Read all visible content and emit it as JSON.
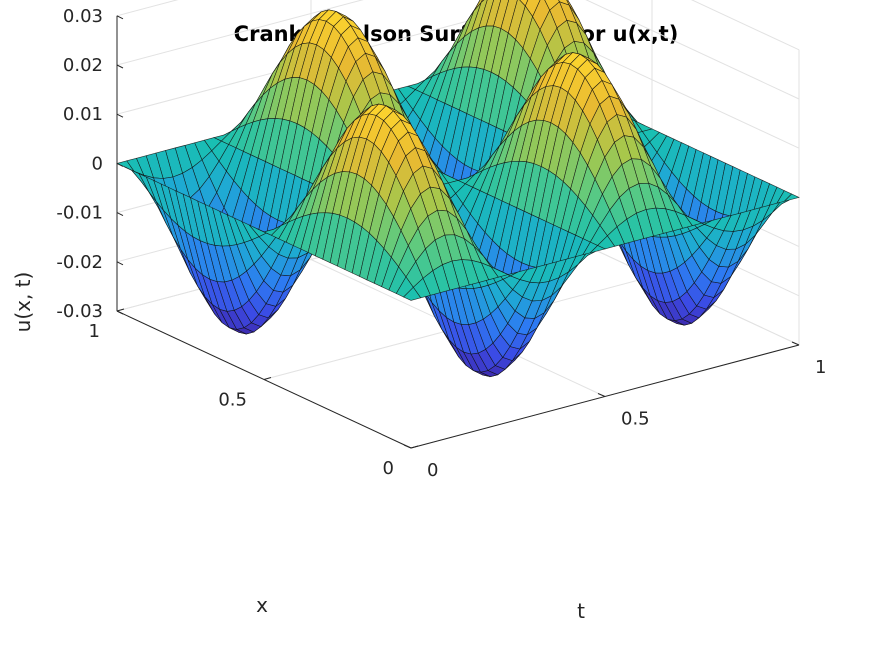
{
  "chart_data": {
    "type": "surface",
    "title": "Crank-Nicolson Surface Plot for u(x,t)",
    "xlabel": "t",
    "ylabel": "x",
    "zlabel": "u(x, t)",
    "t_range": [
      0,
      1
    ],
    "x_range": [
      0,
      1
    ],
    "zlim": [
      -0.03,
      0.03
    ],
    "t_ticks": [
      "0",
      "0.5",
      "1"
    ],
    "x_ticks": [
      "0",
      "0.5",
      "1"
    ],
    "z_ticks": [
      "-0.03",
      "-0.02",
      "-0.01",
      "0",
      "0.01",
      "0.02",
      "0.03"
    ],
    "function": "u(x,t) = 0.03 * sin(2*pi*x) * sin(4*pi*t)",
    "amplitude": 0.03,
    "x_wavenumber": 2,
    "t_wavenumber": 4,
    "x_samples": 41,
    "t_samples": 41,
    "colormap": [
      "#3e26a8",
      "#3b4be5",
      "#2d7cf2",
      "#1fa8d5",
      "#19c0b1",
      "#5bca82",
      "#a6c74c",
      "#e9ba32",
      "#fcd52e"
    ],
    "grid": true
  }
}
